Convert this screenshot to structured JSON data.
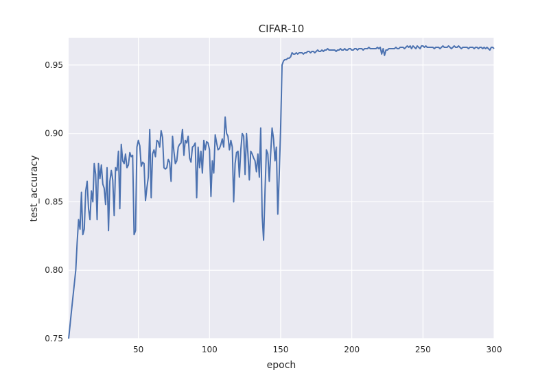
{
  "chart_data": {
    "type": "line",
    "title": "CIFAR-10",
    "xlabel": "epoch",
    "ylabel": "test_accuracy",
    "xlim": [
      1,
      300
    ],
    "ylim": [
      0.75,
      0.97
    ],
    "xticks": [
      50,
      100,
      150,
      200,
      250,
      300
    ],
    "yticks": [
      0.75,
      0.8,
      0.85,
      0.9,
      0.95
    ],
    "ytick_labels": [
      "0.75",
      "0.80",
      "0.85",
      "0.90",
      "0.95"
    ],
    "grid": true,
    "line_color": "#4C72B0",
    "background_color": "#EAEAF2",
    "series": [
      {
        "name": "test_accuracy",
        "x_start": 1,
        "values": [
          0.75,
          0.76,
          0.77,
          0.78,
          0.79,
          0.8,
          0.82,
          0.837,
          0.83,
          0.857,
          0.826,
          0.83,
          0.858,
          0.865,
          0.845,
          0.837,
          0.858,
          0.85,
          0.878,
          0.87,
          0.837,
          0.878,
          0.867,
          0.877,
          0.863,
          0.86,
          0.848,
          0.875,
          0.829,
          0.865,
          0.873,
          0.866,
          0.84,
          0.875,
          0.873,
          0.887,
          0.845,
          0.892,
          0.88,
          0.878,
          0.885,
          0.875,
          0.877,
          0.886,
          0.883,
          0.884,
          0.826,
          0.829,
          0.89,
          0.895,
          0.891,
          0.876,
          0.879,
          0.878,
          0.851,
          0.86,
          0.868,
          0.903,
          0.853,
          0.885,
          0.888,
          0.883,
          0.895,
          0.894,
          0.89,
          0.902,
          0.897,
          0.875,
          0.874,
          0.875,
          0.881,
          0.879,
          0.865,
          0.898,
          0.887,
          0.878,
          0.88,
          0.89,
          0.892,
          0.893,
          0.903,
          0.884,
          0.895,
          0.893,
          0.898,
          0.882,
          0.879,
          0.89,
          0.891,
          0.893,
          0.853,
          0.89,
          0.875,
          0.887,
          0.871,
          0.895,
          0.888,
          0.894,
          0.893,
          0.888,
          0.854,
          0.88,
          0.871,
          0.899,
          0.893,
          0.888,
          0.889,
          0.892,
          0.896,
          0.89,
          0.912,
          0.9,
          0.898,
          0.888,
          0.895,
          0.89,
          0.85,
          0.878,
          0.886,
          0.887,
          0.868,
          0.888,
          0.9,
          0.898,
          0.87,
          0.9,
          0.885,
          0.866,
          0.887,
          0.885,
          0.882,
          0.88,
          0.872,
          0.885,
          0.868,
          0.904,
          0.84,
          0.822,
          0.858,
          0.888,
          0.885,
          0.865,
          0.885,
          0.904,
          0.896,
          0.88,
          0.89,
          0.841,
          0.87,
          0.905,
          0.95,
          0.953,
          0.954,
          0.954,
          0.955,
          0.955,
          0.956,
          0.959,
          0.958,
          0.958,
          0.959,
          0.958,
          0.959,
          0.959,
          0.959,
          0.958,
          0.959,
          0.959,
          0.96,
          0.96,
          0.959,
          0.96,
          0.96,
          0.959,
          0.96,
          0.961,
          0.96,
          0.96,
          0.961,
          0.96,
          0.961,
          0.961,
          0.962,
          0.961,
          0.961,
          0.961,
          0.961,
          0.961,
          0.96,
          0.961,
          0.961,
          0.962,
          0.961,
          0.961,
          0.962,
          0.961,
          0.961,
          0.962,
          0.962,
          0.961,
          0.961,
          0.962,
          0.962,
          0.961,
          0.962,
          0.962,
          0.962,
          0.961,
          0.962,
          0.962,
          0.962,
          0.963,
          0.962,
          0.962,
          0.962,
          0.962,
          0.962,
          0.963,
          0.962,
          0.963,
          0.958,
          0.962,
          0.957,
          0.961,
          0.961,
          0.962,
          0.962,
          0.962,
          0.962,
          0.962,
          0.963,
          0.962,
          0.962,
          0.963,
          0.963,
          0.963,
          0.962,
          0.963,
          0.964,
          0.963,
          0.964,
          0.962,
          0.964,
          0.963,
          0.962,
          0.964,
          0.963,
          0.962,
          0.964,
          0.964,
          0.963,
          0.964,
          0.963,
          0.963,
          0.963,
          0.963,
          0.963,
          0.962,
          0.963,
          0.963,
          0.963,
          0.962,
          0.963,
          0.964,
          0.963,
          0.963,
          0.963,
          0.964,
          0.963,
          0.962,
          0.963,
          0.964,
          0.963,
          0.963,
          0.964,
          0.963,
          0.962,
          0.963,
          0.963,
          0.963,
          0.963,
          0.962,
          0.963,
          0.963,
          0.963,
          0.962,
          0.963,
          0.963,
          0.962,
          0.963,
          0.963,
          0.962,
          0.963,
          0.962,
          0.963,
          0.962,
          0.961,
          0.963,
          0.963,
          0.962
        ]
      }
    ]
  }
}
